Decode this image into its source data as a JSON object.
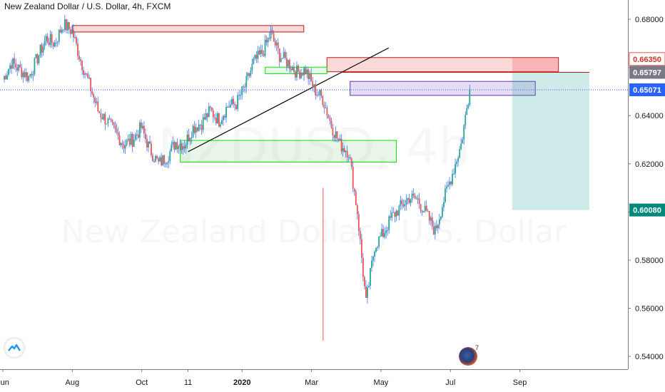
{
  "title": "New Zealand Dollar / U.S. Dollar, 4h, FXCM",
  "watermark": {
    "symbol": "NZDUSD, 4h",
    "name": "New Zealand Dollar / U.S. Dollar"
  },
  "colors": {
    "up": "#26a69a",
    "down": "#ef5350",
    "wick": "#2962ff",
    "price_line": "#2962ff",
    "supply_zone": "#ef5350",
    "demand_zone": "#00e600",
    "target_zone": "#26a69a",
    "entry_zone": "#7e57c2",
    "axis_text": "#131722"
  },
  "icons": {
    "logo": "tradingview-logo-icon",
    "author": "author-avatar-icon"
  },
  "chart_data": {
    "type": "candlestick",
    "x_axis": {
      "tick_labels": [
        "Jun",
        "Aug",
        "Oct",
        "11",
        "2020",
        "Mar",
        "May",
        "Jul",
        "Sep"
      ],
      "tick_index": [
        0,
        9,
        18,
        24,
        31,
        40,
        49,
        58,
        67
      ]
    },
    "y_axis": {
      "ticks": [
        0.54,
        0.56,
        0.58,
        0.6,
        0.62,
        0.64,
        0.66,
        0.68
      ],
      "tick_labels": [
        "0.54000",
        "0.56000",
        "0.58000",
        "0.60000",
        "0.62000",
        "0.64000",
        "0.66000",
        "0.68000"
      ],
      "range": [
        0.5347,
        0.688
      ]
    },
    "price_closes": [
      0.655,
      0.662,
      0.659,
      0.656,
      0.664,
      0.672,
      0.67,
      0.678,
      0.675,
      0.663,
      0.653,
      0.642,
      0.638,
      0.633,
      0.628,
      0.63,
      0.635,
      0.626,
      0.62,
      0.623,
      0.629,
      0.628,
      0.635,
      0.637,
      0.642,
      0.638,
      0.644,
      0.645,
      0.652,
      0.662,
      0.666,
      0.674,
      0.665,
      0.662,
      0.658,
      0.659,
      0.651,
      0.647,
      0.636,
      0.628,
      0.625,
      0.6,
      0.562,
      0.586,
      0.591,
      0.598,
      0.602,
      0.606,
      0.605,
      0.599,
      0.592,
      0.605,
      0.616,
      0.628,
      0.6507
    ],
    "price_markers": [
      {
        "label": "0.66350",
        "value": 0.6635,
        "role": "zone-top"
      },
      {
        "label": "0.65797",
        "value": 0.65797,
        "role": "zone-bottom"
      },
      {
        "label": "0.65071",
        "value": 0.65071,
        "role": "last-price"
      },
      {
        "label": "0.60080",
        "value": 0.6008,
        "role": "target"
      }
    ],
    "zones": [
      {
        "kind": "supply",
        "from_index": 9,
        "to_index": 39,
        "top": 0.6774,
        "bottom": 0.6747
      },
      {
        "kind": "supply",
        "from_index": 42,
        "to_index": 72,
        "top": 0.6641,
        "bottom": 0.6582
      },
      {
        "kind": "demand",
        "from_index": 34,
        "to_index": 42,
        "top": 0.6601,
        "bottom": 0.6574
      },
      {
        "kind": "demand",
        "from_index": 23,
        "to_index": 51,
        "top": 0.6297,
        "bottom": 0.6207
      },
      {
        "kind": "entry",
        "from_index": 45,
        "to_index": 69,
        "top": 0.6542,
        "bottom": 0.6484
      },
      {
        "kind": "target",
        "from_index": 66,
        "to_index": 76,
        "top": 0.658,
        "bottom": 0.6008
      }
    ],
    "trendline": {
      "from_index": 24,
      "from_value": 0.625,
      "to_index": 50,
      "to_value": 0.6681
    },
    "last_price": 0.65071
  }
}
